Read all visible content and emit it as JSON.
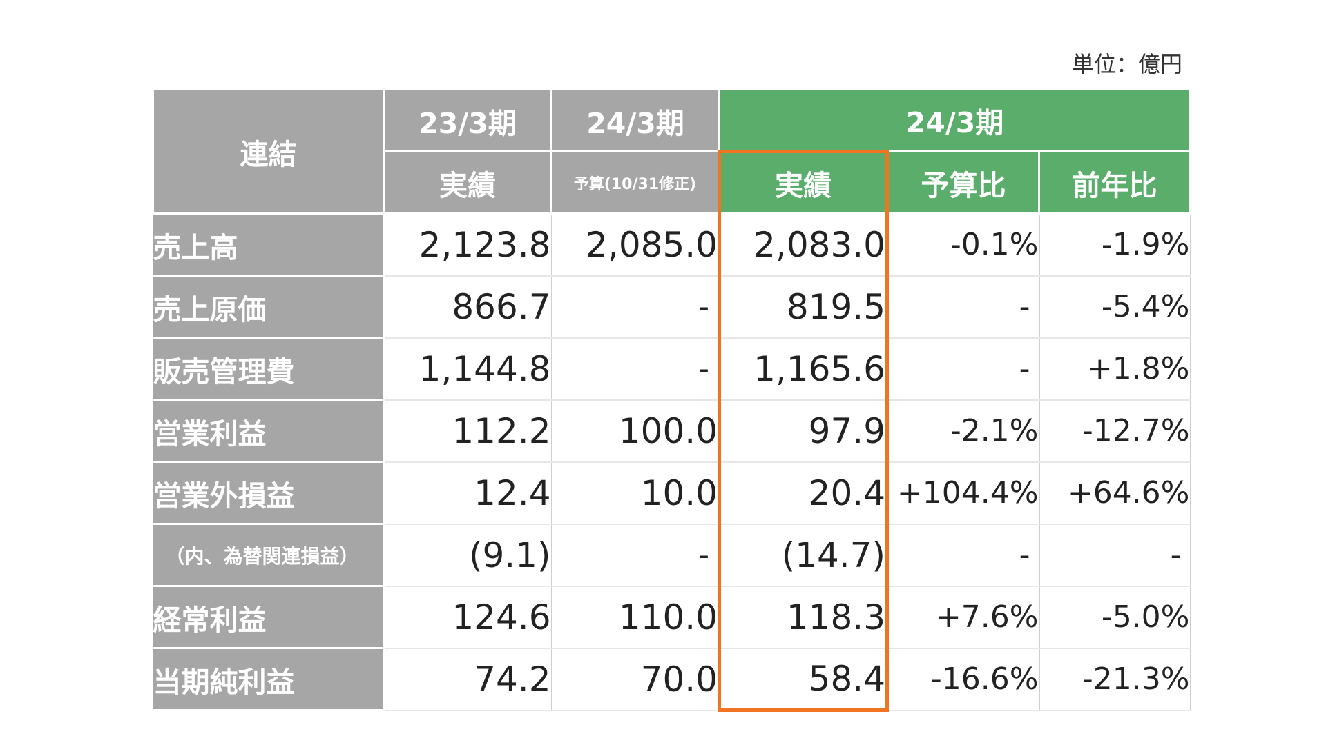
{
  "unit": "単位：億円",
  "header": {
    "corner": "連結",
    "period_2303": "23/3期",
    "period_2403_budget": "24/3期",
    "period_2403": "24/3期",
    "sub_actual_2303": "実績",
    "sub_budget": "予算(10/31修正)",
    "sub_actual_2403": "実績",
    "sub_budget_ratio": "予算比",
    "sub_yoy": "前年比"
  },
  "rows": [
    {
      "label": "売上高",
      "actual_2303": "2,123.8",
      "budget": "2,085.0",
      "actual_2403": "2,083.0",
      "vs_budget": "-0.1%",
      "yoy": "-1.9%"
    },
    {
      "label": "売上原価",
      "actual_2303": "866.7",
      "budget": "-",
      "actual_2403": "819.5",
      "vs_budget": "-",
      "yoy": "-5.4%"
    },
    {
      "label": "販売管理費",
      "actual_2303": "1,144.8",
      "budget": "-",
      "actual_2403": "1,165.6",
      "vs_budget": "-",
      "yoy": "+1.8%"
    },
    {
      "label": "営業利益",
      "actual_2303": "112.2",
      "budget": "100.0",
      "actual_2403": "97.9",
      "vs_budget": "-2.1%",
      "yoy": "-12.7%"
    },
    {
      "label": "営業外損益",
      "actual_2303": "12.4",
      "budget": "10.0",
      "actual_2403": "20.4",
      "vs_budget": "+104.4%",
      "yoy": "+64.6%"
    },
    {
      "label": "（内、為替関連損益）",
      "actual_2303": "(9.1)",
      "budget": "-",
      "actual_2403": "(14.7)",
      "vs_budget": "-",
      "yoy": "-"
    },
    {
      "label": "経常利益",
      "actual_2303": "124.6",
      "budget": "110.0",
      "actual_2403": "118.3",
      "vs_budget": "+7.6%",
      "yoy": "-5.0%"
    },
    {
      "label": "当期純利益",
      "actual_2303": "74.2",
      "budget": "70.0",
      "actual_2403": "58.4",
      "vs_budget": "-16.6%",
      "yoy": "-21.3%"
    }
  ],
  "colors": {
    "header_gray": "#a6a6a6",
    "header_green": "#5bad6b",
    "highlight_orange": "#f07421"
  }
}
